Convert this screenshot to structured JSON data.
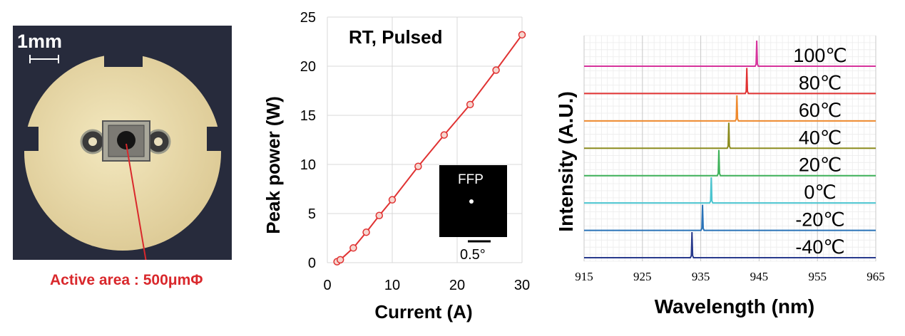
{
  "photo": {
    "scale_label": "1mm",
    "annotation": "Active area : 500μmΦ",
    "annotation_color": "#d9282c",
    "background_color": "#272b3c",
    "disk_color": "#eadcab"
  },
  "chart_data": [
    {
      "type": "line",
      "title": "RT, Pulsed",
      "xlabel": "Current (A)",
      "ylabel": "Peak power (W)",
      "xlim": [
        0,
        30
      ],
      "ylim": [
        0,
        25
      ],
      "xticks": [
        "0",
        "10",
        "20",
        "30"
      ],
      "yticks": [
        "0",
        "5",
        "10",
        "15",
        "20",
        "25"
      ],
      "grid": true,
      "line_color": "#e03232",
      "series": [
        {
          "x": [
            1.5,
            2.0,
            4.0,
            6.0,
            8.0,
            10.0,
            14.0,
            18.0,
            22.0,
            26.0,
            30.0
          ],
          "y": [
            0.1,
            0.3,
            1.5,
            3.1,
            4.8,
            6.4,
            9.8,
            13.0,
            16.1,
            19.6,
            23.2
          ]
        }
      ],
      "inset": {
        "label": "FFP",
        "scale_label": "0.5°"
      }
    },
    {
      "type": "line",
      "xlabel": "Wavelength (nm)",
      "ylabel": "Intensity (A.U.)",
      "xlim": [
        915,
        965
      ],
      "xticks": [
        "915",
        "925",
        "935",
        "945",
        "955",
        "965"
      ],
      "grid": true,
      "series": [
        {
          "name": "100℃",
          "peak_nm": 944.6,
          "color": "#d6339c"
        },
        {
          "name": "80℃",
          "peak_nm": 942.9,
          "color": "#e03232"
        },
        {
          "name": "60℃",
          "peak_nm": 941.2,
          "color": "#ef8a2e"
        },
        {
          "name": "40℃",
          "peak_nm": 939.8,
          "color": "#8c8c1e"
        },
        {
          "name": "20℃",
          "peak_nm": 938.1,
          "color": "#3fb25a"
        },
        {
          "name": "0℃",
          "peak_nm": 936.8,
          "color": "#4ac4cf"
        },
        {
          "name": "-20℃",
          "peak_nm": 935.3,
          "color": "#2a73b8"
        },
        {
          "name": "-40℃",
          "peak_nm": 933.5,
          "color": "#283a8c"
        }
      ]
    }
  ]
}
